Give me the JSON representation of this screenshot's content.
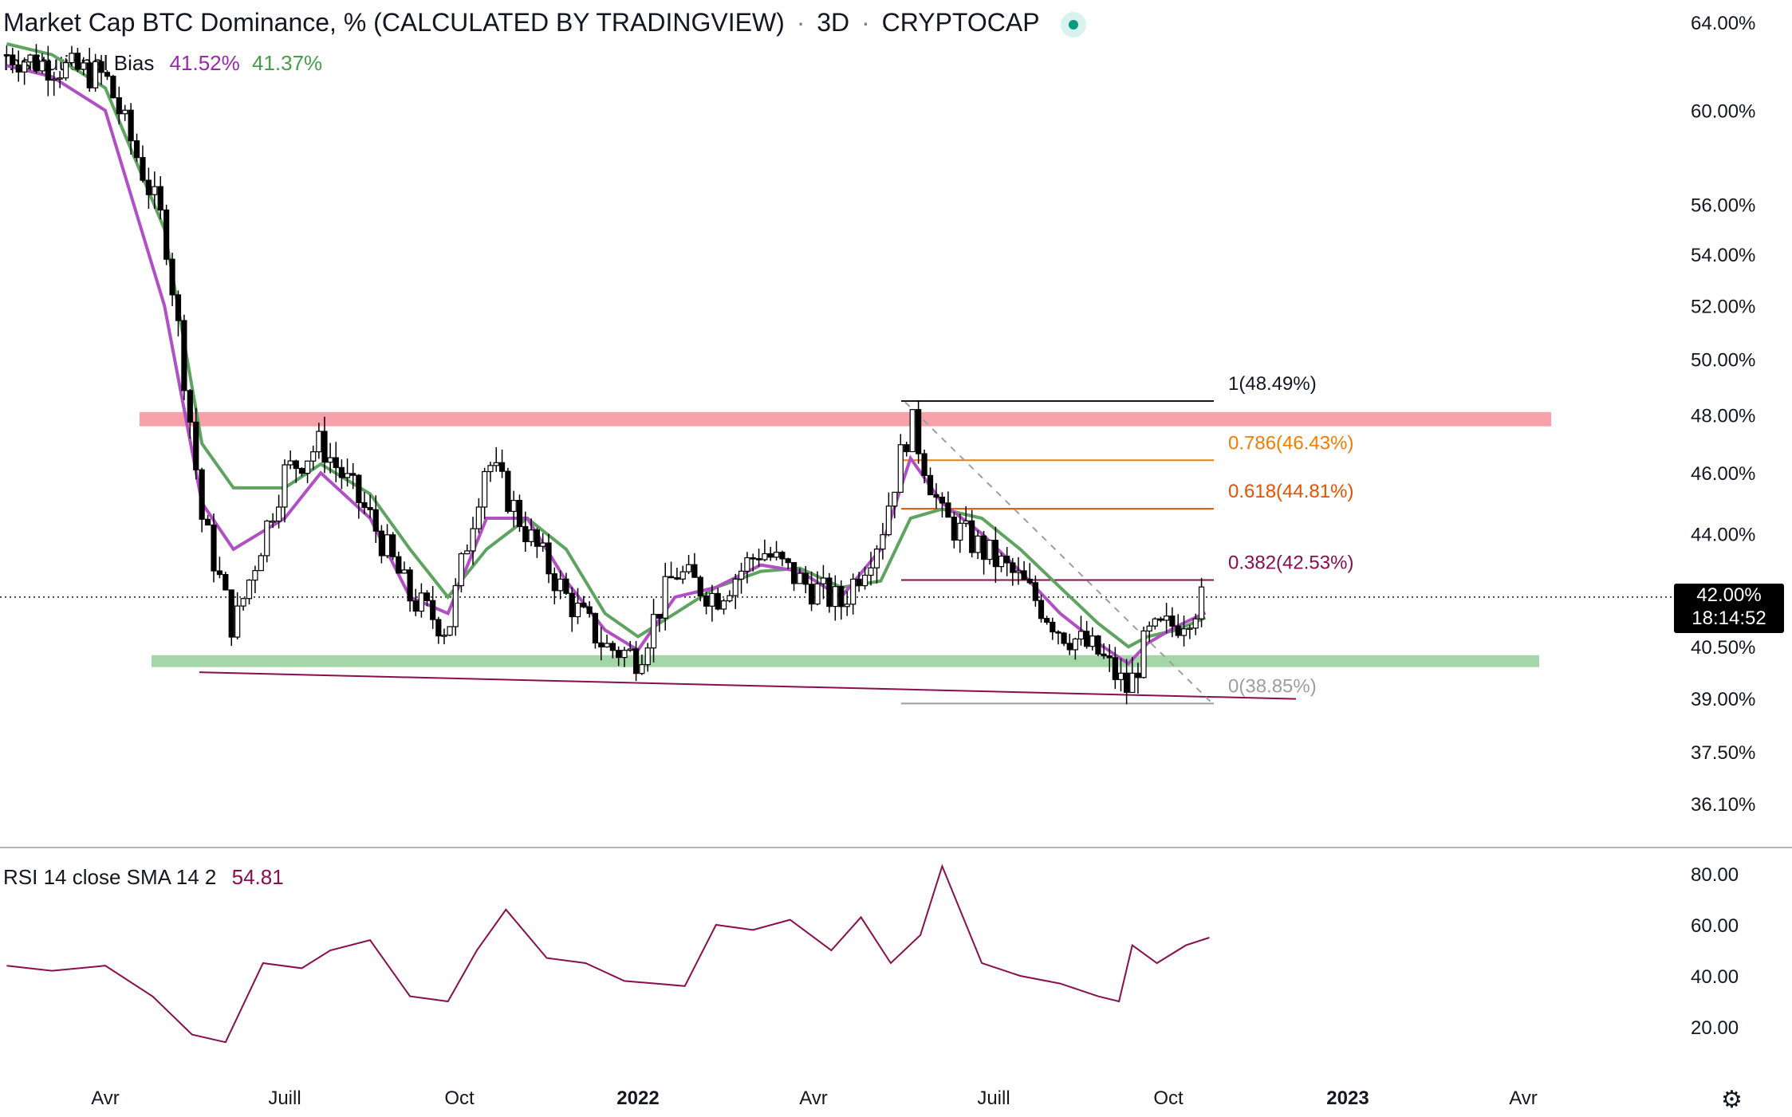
{
  "header": {
    "title": "Market Cap BTC Dominance, % (CALCULATED BY TRADINGVIEW)",
    "interval": "3D",
    "exchange": "CRYPTOCAP",
    "status_color": "#089981"
  },
  "indicator": {
    "name": "Institutional Bias",
    "value_fast": "41.52%",
    "value_slow": "41.37%",
    "color_fast": "#9c27b0",
    "color_slow": "#43a047"
  },
  "rsi_panel": {
    "label": "RSI 14 close SMA 14 2",
    "value": "54.81",
    "color": "#880e4f"
  },
  "price_tag": {
    "price": "42.00%",
    "countdown": "18:14:52"
  },
  "price_axis": [
    "64.00%",
    "60.00%",
    "56.00%",
    "54.00%",
    "52.00%",
    "50.00%",
    "48.00%",
    "46.00%",
    "44.00%",
    "42.00%",
    "40.50%",
    "39.00%",
    "37.50%",
    "36.10%"
  ],
  "rsi_axis": [
    "80.00",
    "60.00",
    "40.00",
    "20.00"
  ],
  "time_axis": [
    "Avr",
    "Juill",
    "Oct",
    "2022",
    "Avr",
    "Juill",
    "Oct",
    "2023",
    "Avr"
  ],
  "fib_levels": [
    {
      "label": "1(48.49%)",
      "price": 48.49,
      "color": "#131722"
    },
    {
      "label": "0.786(46.43%)",
      "price": 46.43,
      "color": "#f57c00"
    },
    {
      "label": "0.618(44.81%)",
      "price": 44.81,
      "color": "#e65100"
    },
    {
      "label": "0.382(42.53%)",
      "price": 42.53,
      "color": "#880e4f"
    },
    {
      "label": "0(38.85%)",
      "price": 38.85,
      "color": "#9e9e9e"
    }
  ],
  "zones": [
    {
      "name": "resistance",
      "price_from": 47.6,
      "price_to": 48.1,
      "color": "#f7a1ab"
    },
    {
      "name": "support",
      "price_from": 39.9,
      "price_to": 40.25,
      "color": "#a5d6a7"
    }
  ],
  "chart_data": {
    "type": "line",
    "title": "Market Cap BTC Dominance, % (CALCULATED BY TRADINGVIEW)",
    "interval": "3D",
    "scale": "log",
    "x": [
      "2021-02-10",
      "2021-03-05",
      "2021-04-01",
      "2021-05-01",
      "2021-05-20",
      "2021-06-05",
      "2021-07-01",
      "2021-07-20",
      "2021-08-15",
      "2021-09-05",
      "2021-09-25",
      "2021-10-15",
      "2021-11-05",
      "2021-11-25",
      "2021-12-15",
      "2022-01-01",
      "2022-01-20",
      "2022-02-10",
      "2022-03-05",
      "2022-03-25",
      "2022-04-15",
      "2022-05-05",
      "2022-05-20",
      "2022-06-05",
      "2022-06-25",
      "2022-07-15",
      "2022-08-05",
      "2022-08-25",
      "2022-09-10",
      "2022-09-20",
      "2022-10-05",
      "2022-10-20"
    ],
    "series": [
      {
        "name": "",
        "values": [
          62.5,
          62.0,
          61.5,
          55.0,
          44.5,
          41.0,
          46.0,
          47.0,
          44.5,
          42.0,
          41.0,
          46.5,
          44.0,
          42.0,
          40.5,
          40.2,
          42.8,
          42.0,
          43.5,
          42.5,
          41.8,
          44.0,
          47.8,
          44.5,
          43.5,
          42.5,
          41.0,
          40.3,
          39.2,
          40.8,
          41.2,
          42.0
        ]
      },
      {
        "name": "",
        "values": [
          62.0,
          61.5,
          60.0,
          52.0,
          45.0,
          43.5,
          44.5,
          46.0,
          44.5,
          42.0,
          41.5,
          44.5,
          44.5,
          42.5,
          41.0,
          40.4,
          42.0,
          42.3,
          43.0,
          42.8,
          42.0,
          43.5,
          46.5,
          45.0,
          44.0,
          42.8,
          41.5,
          40.6,
          40.0,
          40.6,
          41.1,
          41.52
        ]
      },
      {
        "name": "",
        "values": [
          63.0,
          62.5,
          61.0,
          55.0,
          47.0,
          45.5,
          45.5,
          46.3,
          45.3,
          43.5,
          42.0,
          43.5,
          44.5,
          43.5,
          41.5,
          40.8,
          41.5,
          42.3,
          42.8,
          42.9,
          42.3,
          42.5,
          44.5,
          44.8,
          44.5,
          43.5,
          42.3,
          41.2,
          40.5,
          40.8,
          41.0,
          41.37
        ]
      }
    ],
    "rsi": {
      "x": [
        "2021-02-10",
        "2021-03-05",
        "2021-04-01",
        "2021-04-25",
        "2021-05-15",
        "2021-06-01",
        "2021-06-20",
        "2021-07-10",
        "2021-07-25",
        "2021-08-15",
        "2021-09-05",
        "2021-09-25",
        "2021-10-10",
        "2021-10-25",
        "2021-11-15",
        "2021-12-05",
        "2021-12-25",
        "2022-01-10",
        "2022-01-25",
        "2022-02-10",
        "2022-03-01",
        "2022-03-20",
        "2022-04-10",
        "2022-04-25",
        "2022-05-10",
        "2022-05-25",
        "2022-06-05",
        "2022-06-25",
        "2022-07-15",
        "2022-08-05",
        "2022-08-25",
        "2022-09-05",
        "2022-09-12",
        "2022-09-25",
        "2022-10-10",
        "2022-10-22"
      ],
      "values": [
        44,
        42,
        44,
        32,
        17,
        14,
        45,
        43,
        50,
        54,
        32,
        30,
        50,
        66,
        47,
        45,
        38,
        37,
        36,
        60,
        58,
        62,
        50,
        63,
        45,
        56,
        83,
        45,
        40,
        37,
        32,
        30,
        52,
        45,
        52,
        55
      ],
      "ylim": [
        10,
        85
      ]
    },
    "ylim": [
      36.1,
      64.0
    ]
  }
}
